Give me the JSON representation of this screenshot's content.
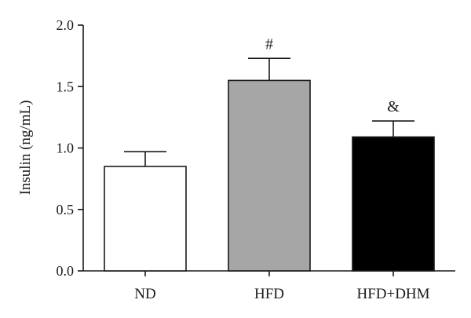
{
  "chart_data": {
    "type": "bar",
    "title": "",
    "xlabel": "",
    "ylabel": "Insulin (ng/mL)",
    "ylim": [
      0,
      2.0
    ],
    "yticks": [
      "0.0",
      "0.5",
      "1.0",
      "1.5",
      "2.0"
    ],
    "categories": [
      "ND",
      "HFD",
      "HFD+DHM"
    ],
    "values": [
      0.85,
      1.55,
      1.09
    ],
    "errors": [
      0.12,
      0.18,
      0.13
    ],
    "colors": [
      "#ffffff",
      "#a6a6a6",
      "#000000"
    ],
    "annotations": [
      "",
      "#",
      "&"
    ],
    "grid": false,
    "legend": "none"
  }
}
